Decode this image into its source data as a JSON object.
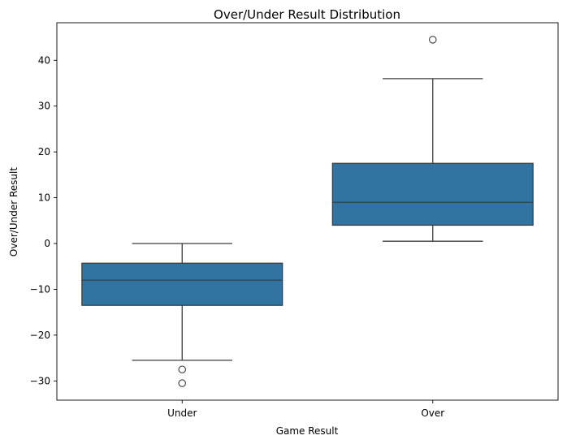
{
  "chart_data": {
    "type": "box",
    "title": "Over/Under Result Distribution",
    "xlabel": "Game Result",
    "ylabel": "Over/Under Result",
    "categories": [
      "Under",
      "Over"
    ],
    "ylim": [
      -34.2,
      48.2
    ],
    "yticks": [
      -30,
      -20,
      -10,
      0,
      10,
      20,
      30,
      40
    ],
    "grid": false,
    "box_color": "#3274a1",
    "line_color": "#3d3d3d",
    "boxes": [
      {
        "category": "Under",
        "whisker_low": -25.5,
        "q1": -13.5,
        "median": -8.0,
        "q3": -4.3,
        "whisker_high": 0.0,
        "outliers": [
          -27.5,
          -30.5
        ]
      },
      {
        "category": "Over",
        "whisker_low": 0.5,
        "q1": 4.0,
        "median": 9.0,
        "q3": 17.5,
        "whisker_high": 36.0,
        "outliers": [
          44.5
        ]
      }
    ]
  }
}
